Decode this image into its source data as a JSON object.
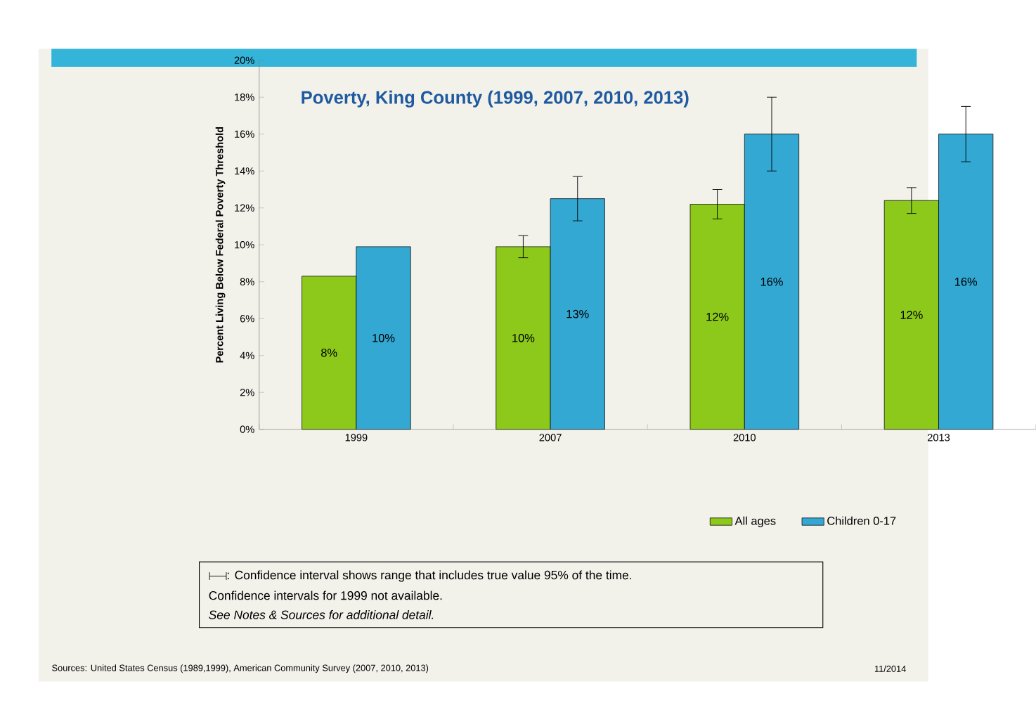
{
  "chart_data": {
    "type": "bar",
    "title": "Poverty, King County (1999, 2007, 2010, 2013)",
    "ylabel": "Percent Living Below Federal Poverty Threshold",
    "categories": [
      "1999",
      "2007",
      "2010",
      "2013"
    ],
    "series": [
      {
        "name": "All ages",
        "color": "#8dc91a",
        "values": [
          8.3,
          9.9,
          12.2,
          12.4
        ],
        "errors": [
          null,
          [
            9.3,
            10.5
          ],
          [
            11.4,
            13.0
          ],
          [
            11.7,
            13.1
          ]
        ],
        "value_labels": [
          "8%",
          "10%",
          "12%",
          "12%"
        ]
      },
      {
        "name": "Children 0-17",
        "color": "#33a8d3",
        "values": [
          9.9,
          12.5,
          16.0,
          16.0
        ],
        "errors": [
          null,
          [
            11.3,
            13.7
          ],
          [
            14.0,
            18.0
          ],
          [
            14.5,
            17.5
          ]
        ],
        "value_labels": [
          "10%",
          "13%",
          "16%",
          "16%"
        ]
      }
    ],
    "ylim": [
      0,
      20
    ],
    "yticks": [
      {
        "value": 0,
        "label": "0%"
      },
      {
        "value": 2,
        "label": "2%"
      },
      {
        "value": 4,
        "label": "4%"
      },
      {
        "value": 6,
        "label": "6%"
      },
      {
        "value": 8,
        "label": "8%"
      },
      {
        "value": 10,
        "label": "10%"
      },
      {
        "value": 12,
        "label": "12%"
      },
      {
        "value": 14,
        "label": "14%"
      },
      {
        "value": 16,
        "label": "16%"
      },
      {
        "value": 18,
        "label": "18%"
      },
      {
        "value": 20,
        "label": "20%"
      }
    ],
    "legend": "bottom",
    "annotations": [
      ": Confidence interval shows range that includes true value 95% of the time.",
      "Confidence intervals for 1999 not available.",
      "See Notes & Sources for additional detail.",
      "Sources: United States Census (1989,1999), American Community Survey (2007, 2010, 2013)",
      "11/2014"
    ]
  }
}
